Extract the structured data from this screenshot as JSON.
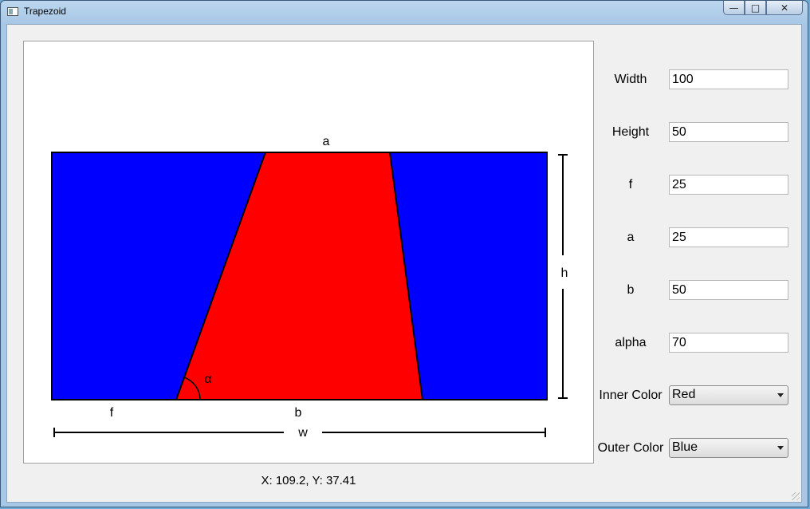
{
  "window": {
    "title": "Trapezoid"
  },
  "colors": {
    "inner": "#ff0000",
    "outer": "#0000ff"
  },
  "drawing": {
    "label_a": "a",
    "label_b": "b",
    "label_f": "f",
    "label_h": "h",
    "label_w": "w",
    "label_alpha": "α"
  },
  "status": {
    "coordinates": "X: 109.2, Y: 37.41"
  },
  "form": {
    "fields": [
      {
        "label": "Width",
        "value": "100"
      },
      {
        "label": "Height",
        "value": "50"
      },
      {
        "label": "f",
        "value": "25"
      },
      {
        "label": "a",
        "value": "25"
      },
      {
        "label": "b",
        "value": "50"
      },
      {
        "label": "alpha",
        "value": "70"
      }
    ],
    "inner_color": {
      "label": "Inner Color",
      "value": "Red"
    },
    "outer_color": {
      "label": "Outer Color",
      "value": "Blue"
    }
  }
}
